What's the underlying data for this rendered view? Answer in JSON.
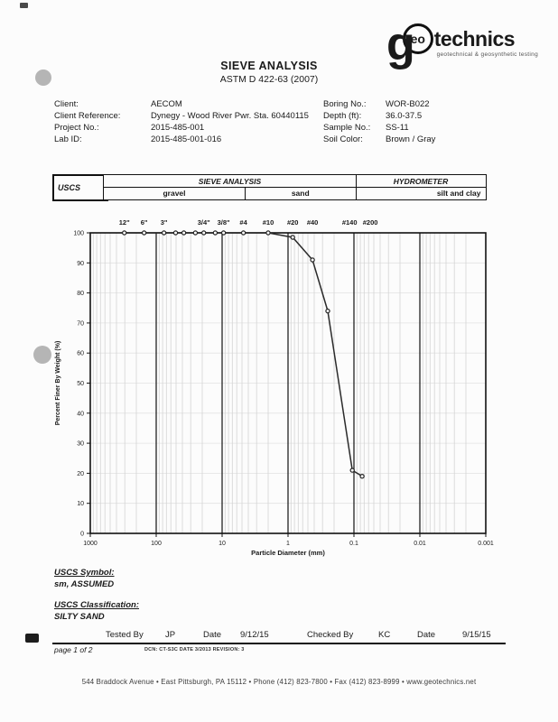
{
  "header": {
    "title": "SIEVE ANALYSIS",
    "subtitle": "ASTM D 422-63 (2007)",
    "logo": {
      "g": "g",
      "eo": "eo",
      "rest": "technics",
      "tagline": "geotechnical & geosynthetic testing"
    }
  },
  "info": {
    "left": [
      {
        "label": "Client:",
        "value": "AECOM"
      },
      {
        "label": "Client Reference:",
        "value": "Dynegy - Wood River Pwr. Sta. 60440115"
      },
      {
        "label": "Project No.:",
        "value": "2015-485-001"
      },
      {
        "label": "Lab ID:",
        "value": "2015-485-001-016"
      }
    ],
    "right": [
      {
        "label": "Boring No.:",
        "value": "WOR-B022"
      },
      {
        "label": "Depth (ft):",
        "value": "36.0-37.5"
      },
      {
        "label": "Sample No.:",
        "value": "SS-11"
      },
      {
        "label": "Soil Color:",
        "value": "Brown / Gray"
      }
    ]
  },
  "classification_table": {
    "uscs": "USCS",
    "sieve_analysis": "SIEVE ANALYSIS",
    "hydrometer": "HYDROMETER",
    "gravel": "gravel",
    "sand": "sand",
    "silt_and_clay": "silt and clay"
  },
  "chart_data": {
    "type": "line",
    "title": "",
    "xlabel": "Particle Diameter (mm)",
    "ylabel": "Percent Finer By Weight (%)",
    "x_scale": "log",
    "xlim": [
      1000,
      0.001
    ],
    "ylim": [
      0,
      100
    ],
    "x_ticks": [
      "1000",
      "100",
      "10",
      "1",
      "0.1",
      "0.01",
      "0.001"
    ],
    "x_tick_values": [
      1000,
      100,
      10,
      1,
      0.1,
      0.01,
      0.001
    ],
    "y_tick_step": 10,
    "grid": true,
    "sieve_labels": [
      {
        "label": "12\"",
        "mm": 304.8,
        "dx": 0
      },
      {
        "label": "6\"",
        "mm": 152.4,
        "dx": 0
      },
      {
        "label": "3\"",
        "mm": 76.2,
        "dx": 0
      },
      {
        "label": "3/4\"",
        "mm": 19,
        "dx": 0
      },
      {
        "label": "3/8\"",
        "mm": 9.5,
        "dx": 0
      },
      {
        "label": "#4",
        "mm": 4.75,
        "dx": 0
      },
      {
        "label": "#10",
        "mm": 2,
        "dx": 0
      },
      {
        "label": "#20",
        "mm": 0.85,
        "dx": 0
      },
      {
        "label": "#40",
        "mm": 0.425,
        "dx": 0
      },
      {
        "label": "#140",
        "mm": 0.106,
        "dx": -3
      },
      {
        "label": "#200",
        "mm": 0.075,
        "dx": 9
      }
    ],
    "series": [
      {
        "name": "sample",
        "points": [
          {
            "mm": 304.8,
            "pct": 100
          },
          {
            "mm": 152.4,
            "pct": 100
          },
          {
            "mm": 76.2,
            "pct": 100
          },
          {
            "mm": 50.8,
            "pct": 100
          },
          {
            "mm": 38.1,
            "pct": 100
          },
          {
            "mm": 25.4,
            "pct": 100
          },
          {
            "mm": 19,
            "pct": 100
          },
          {
            "mm": 12.7,
            "pct": 100
          },
          {
            "mm": 9.5,
            "pct": 100
          },
          {
            "mm": 4.75,
            "pct": 100
          },
          {
            "mm": 2,
            "pct": 100
          },
          {
            "mm": 0.85,
            "pct": 98.5
          },
          {
            "mm": 0.425,
            "pct": 91
          },
          {
            "mm": 0.25,
            "pct": 74
          },
          {
            "mm": 0.106,
            "pct": 21
          },
          {
            "mm": 0.075,
            "pct": 19
          }
        ]
      }
    ]
  },
  "results": {
    "uscs_symbol_label": "USCS Symbol:",
    "uscs_symbol": "sm, ASSUMED",
    "uscs_classification_label": "USCS Classification:",
    "uscs_classification": "SILTY SAND"
  },
  "signoff": {
    "tested_by_label": "Tested By",
    "tested_by": "JP",
    "date1_label": "Date",
    "tested_date": "9/12/15",
    "checked_by_label": "Checked By",
    "checked_by": "KC",
    "date2_label": "Date",
    "checked_date": "9/15/15",
    "page": "page 1 of 2",
    "dcn": "DCN: CT-S3C DATE 3/2013   REVISION: 3"
  },
  "footer": {
    "address": "544 Braddock Avenue  •  East Pittsburgh, PA  15112  •  Phone  (412) 823-7800  •  Fax (412) 823-8999  •  www.geotechnics.net"
  }
}
